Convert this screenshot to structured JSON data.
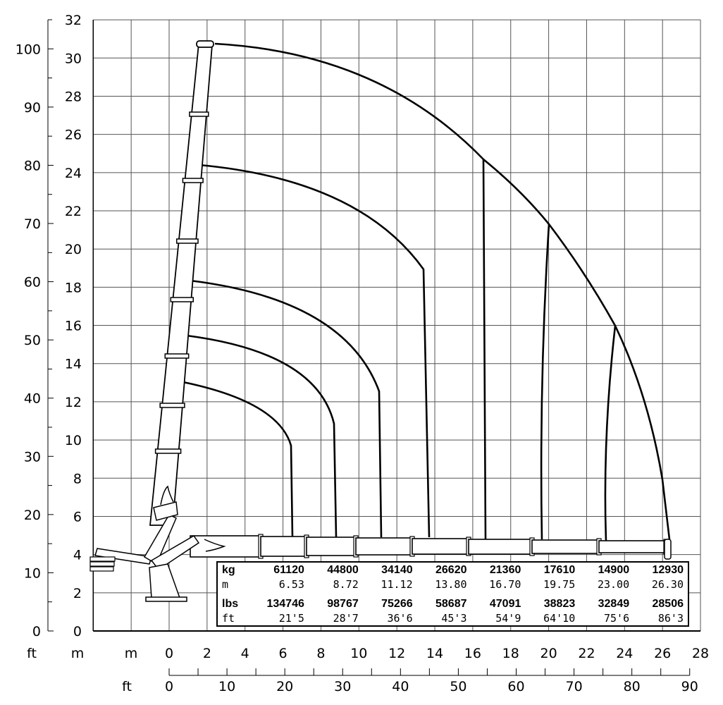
{
  "chart_data": {
    "type": "line",
    "title": "",
    "x_axis_m": {
      "label": "m",
      "ticks": [
        0,
        2,
        4,
        6,
        8,
        10,
        12,
        14,
        16,
        18,
        20,
        22,
        24,
        26,
        28
      ],
      "range": [
        -4,
        28
      ]
    },
    "x_axis_ft": {
      "label": "ft",
      "ticks": [
        0,
        10,
        20,
        30,
        40,
        50,
        60,
        70,
        80,
        90
      ]
    },
    "y_axis_m": {
      "label": "m",
      "ticks": [
        0,
        2,
        4,
        6,
        8,
        10,
        12,
        14,
        16,
        18,
        20,
        22,
        24,
        26,
        28,
        30,
        32
      ],
      "range": [
        0,
        32
      ]
    },
    "y_axis_ft": {
      "label": "ft",
      "ticks": [
        0,
        10,
        20,
        30,
        40,
        50,
        60,
        70,
        80,
        90,
        100
      ]
    },
    "grid": true,
    "load_table": {
      "headers": [
        "kg",
        "m",
        "lbs",
        "ft"
      ],
      "kg": [
        "61120",
        "44800",
        "34140",
        "26620",
        "21360",
        "17610",
        "14900",
        "12930"
      ],
      "m": [
        "6.53",
        "8.72",
        "11.12",
        "13.80",
        "16.70",
        "19.75",
        "23.00",
        "26.30"
      ],
      "lbs": [
        "134746",
        "98767",
        "75266",
        "58687",
        "47091",
        "38823",
        "32849",
        "28506"
      ],
      "ft": [
        "21'5",
        "28'7",
        "36'6",
        "45'3",
        "54'9",
        "64'10",
        "75'6",
        "86'3"
      ]
    }
  }
}
